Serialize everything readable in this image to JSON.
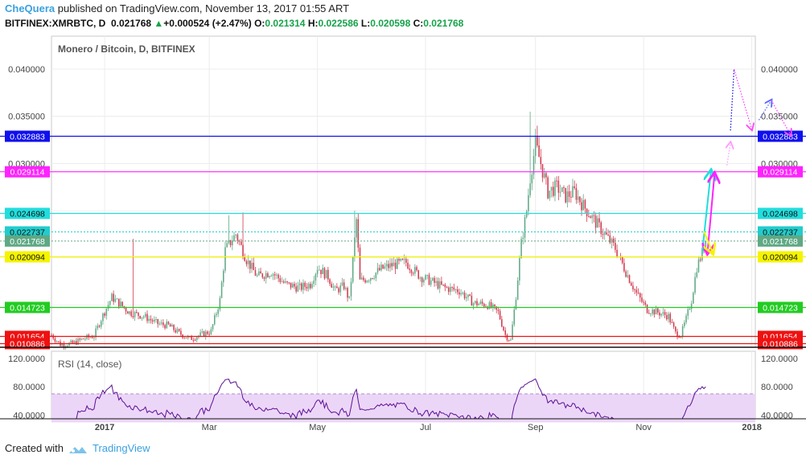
{
  "header": {
    "user": "CheQuera",
    "published": " published on TradingView.com, November 13, 2017 01:55 ART",
    "symbol": "BITFINEX:XMRBTC, D",
    "last": "0.021768",
    "change": "+0.000524 (+2.47%)",
    "o_label": "O:",
    "o": "0.021314",
    "h_label": "H:",
    "h": "0.022586",
    "l_label": "L:",
    "l": "0.020598",
    "c_label": "C:",
    "c": "0.021768"
  },
  "footer": {
    "created": "Created with",
    "brand": "TradingView"
  },
  "chart_data": {
    "type": "candlestick",
    "title": "Monero / Bitcoin, D, BITFINEX",
    "ylim": [
      0.0105,
      0.0435
    ],
    "y_ticks": [
      "0.040000",
      "0.035000",
      "0.030000"
    ],
    "x_ticks": [
      {
        "label": "2017",
        "d": 30
      },
      {
        "label": "Mar",
        "d": 89
      },
      {
        "label": "May",
        "d": 150
      },
      {
        "label": "Jul",
        "d": 211
      },
      {
        "label": "Sep",
        "d": 273
      },
      {
        "label": "Nov",
        "d": 334
      },
      {
        "label": "2018",
        "d": 395
      }
    ],
    "x_domain": [
      0,
      397
    ],
    "levels": [
      {
        "value": 0.032883,
        "label": "0.032883",
        "color": "#1010ee",
        "style": "solid"
      },
      {
        "value": 0.029114,
        "label": "0.029114",
        "color": "#ff22ff",
        "style": "solid"
      },
      {
        "value": 0.024698,
        "label": "0.024698",
        "color": "#22dddd",
        "style": "solid"
      },
      {
        "value": 0.022737,
        "label": "0.022737",
        "color": "#22cccc",
        "style": "dotted"
      },
      {
        "value": 0.021768,
        "label": "0.021768",
        "color": "#5fa985",
        "style": "dotted"
      },
      {
        "value": 0.020094,
        "label": "0.020094",
        "color": "#f4f400",
        "style": "solid"
      },
      {
        "value": 0.014723,
        "label": "0.014723",
        "color": "#22cc22",
        "style": "solid"
      },
      {
        "value": 0.011654,
        "label": "0.011654",
        "color": "#ee1111",
        "style": "solid"
      },
      {
        "value": 0.010886,
        "label": "0.010886",
        "color": "#ee1111",
        "style": "solid"
      }
    ],
    "anchors": [
      [
        0,
        0.0118
      ],
      [
        5,
        0.0108
      ],
      [
        12,
        0.0109
      ],
      [
        18,
        0.0114
      ],
      [
        24,
        0.0117
      ],
      [
        28,
        0.0135
      ],
      [
        34,
        0.0158
      ],
      [
        38,
        0.0152
      ],
      [
        44,
        0.0142
      ],
      [
        52,
        0.0138
      ],
      [
        60,
        0.013
      ],
      [
        66,
        0.0128
      ],
      [
        72,
        0.012
      ],
      [
        78,
        0.0114
      ],
      [
        84,
        0.0118
      ],
      [
        90,
        0.0122
      ],
      [
        95,
        0.0155
      ],
      [
        98,
        0.0208
      ],
      [
        104,
        0.0225
      ],
      [
        110,
        0.0198
      ],
      [
        116,
        0.018
      ],
      [
        124,
        0.0185
      ],
      [
        132,
        0.0172
      ],
      [
        140,
        0.0168
      ],
      [
        146,
        0.0172
      ],
      [
        150,
        0.019
      ],
      [
        156,
        0.018
      ],
      [
        160,
        0.0165
      ],
      [
        165,
        0.017
      ],
      [
        168,
        0.0155
      ],
      [
        172,
        0.024
      ],
      [
        174,
        0.0175
      ],
      [
        180,
        0.018
      ],
      [
        186,
        0.0188
      ],
      [
        192,
        0.0192
      ],
      [
        200,
        0.0195
      ],
      [
        208,
        0.018
      ],
      [
        214,
        0.0175
      ],
      [
        222,
        0.0168
      ],
      [
        230,
        0.0165
      ],
      [
        238,
        0.0152
      ],
      [
        246,
        0.015
      ],
      [
        252,
        0.0142
      ],
      [
        256,
        0.0118
      ],
      [
        259,
        0.0112
      ],
      [
        262,
        0.016
      ],
      [
        265,
        0.0215
      ],
      [
        268,
        0.025
      ],
      [
        270,
        0.0285
      ],
      [
        273,
        0.032
      ],
      [
        276,
        0.03
      ],
      [
        280,
        0.027
      ],
      [
        285,
        0.0275
      ],
      [
        290,
        0.0265
      ],
      [
        295,
        0.027
      ],
      [
        300,
        0.0255
      ],
      [
        306,
        0.024
      ],
      [
        312,
        0.0225
      ],
      [
        318,
        0.021
      ],
      [
        324,
        0.0185
      ],
      [
        330,
        0.0162
      ],
      [
        336,
        0.0145
      ],
      [
        342,
        0.0142
      ],
      [
        348,
        0.0138
      ],
      [
        352,
        0.012
      ],
      [
        355,
        0.0118
      ],
      [
        358,
        0.0135
      ],
      [
        361,
        0.0155
      ],
      [
        364,
        0.019
      ],
      [
        367,
        0.0205
      ],
      [
        369,
        0.0218
      ]
    ],
    "spikes": [
      [
        46,
        0.022
      ],
      [
        100,
        0.0245
      ],
      [
        108,
        0.0248
      ],
      [
        171,
        0.025
      ],
      [
        270,
        0.0355
      ],
      [
        274,
        0.034
      ]
    ],
    "projection_paths": [
      {
        "color": "#22dddd",
        "points": [
          [
            367,
            0.0205
          ],
          [
            372,
            0.0292
          ]
        ],
        "arrow": "end"
      },
      {
        "color": "#ff22ff",
        "points": [
          [
            370,
            0.0205
          ],
          [
            374,
            0.0289
          ]
        ],
        "arrow": "both"
      },
      {
        "color": "#f4f400",
        "points": [
          [
            368,
            0.0228
          ],
          [
            373,
            0.0205
          ]
        ],
        "arrow": "end"
      },
      {
        "color": "#ff99ff",
        "points": [
          [
            381,
            0.0298
          ],
          [
            383,
            0.0322
          ]
        ],
        "arrow": "end",
        "dotted": true
      },
      {
        "color": "#1010ee",
        "points": [
          [
            383,
            0.0335
          ],
          [
            385,
            0.04
          ]
        ],
        "arrow": "none",
        "dotted": true
      },
      {
        "color": "#ff44ff",
        "points": [
          [
            385,
            0.04
          ],
          [
            395,
            0.0336
          ]
        ],
        "arrow": "end",
        "dotted": true
      },
      {
        "color": "#5566ff",
        "points": [
          [
            399,
            0.0346
          ],
          [
            406,
            0.0367
          ]
        ],
        "arrow": "end",
        "dotted": true
      },
      {
        "color": "#ff44ff",
        "points": [
          [
            406,
            0.0367
          ],
          [
            417,
            0.033
          ]
        ],
        "arrow": "end",
        "dotted": true
      }
    ],
    "series_colors": {
      "up": "#5fa985",
      "down": "#d2394e"
    },
    "rsi": {
      "label": "RSI (14, close)",
      "ylim": [
        35,
        130
      ],
      "ticks": [
        "120.0000",
        "80.0000",
        "40.0000"
      ],
      "tick_values": [
        120,
        80,
        40
      ],
      "band": [
        30,
        70
      ],
      "color": "#5b1094",
      "band_color": "#ecd6f8"
    }
  }
}
